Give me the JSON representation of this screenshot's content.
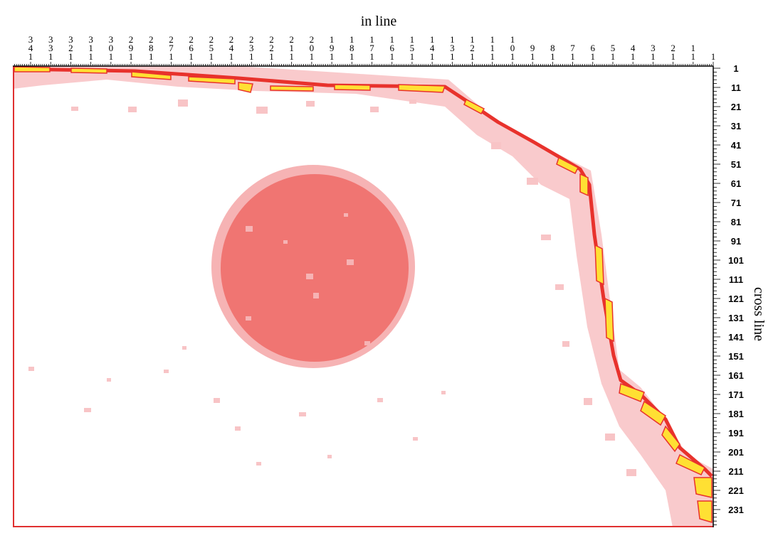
{
  "x_axis": {
    "title": "in line",
    "ticks": [
      "341",
      "331",
      "321",
      "311",
      "301",
      "291",
      "281",
      "271",
      "261",
      "251",
      "241",
      "231",
      "221",
      "211",
      "201",
      "191",
      "181",
      "171",
      "161",
      "151",
      "141",
      "131",
      "121",
      "111",
      "101",
      "91",
      "81",
      "71",
      "61",
      "51",
      "41",
      "31",
      "21",
      "11",
      "1"
    ]
  },
  "y_axis": {
    "title": "cross line",
    "ticks": [
      "1",
      "11",
      "21",
      "31",
      "41",
      "51",
      "61",
      "71",
      "81",
      "91",
      "101",
      "111",
      "121",
      "131",
      "141",
      "151",
      "161",
      "171",
      "181",
      "191",
      "201",
      "211",
      "221",
      "231"
    ]
  },
  "colors": {
    "background": "#ffffff",
    "light_pink": "#f8c4c6",
    "salmon": "#f07572",
    "red": "#e8322c",
    "yellow": "#ffe033",
    "frame": "#000000",
    "left_edge": "#e03030"
  }
}
